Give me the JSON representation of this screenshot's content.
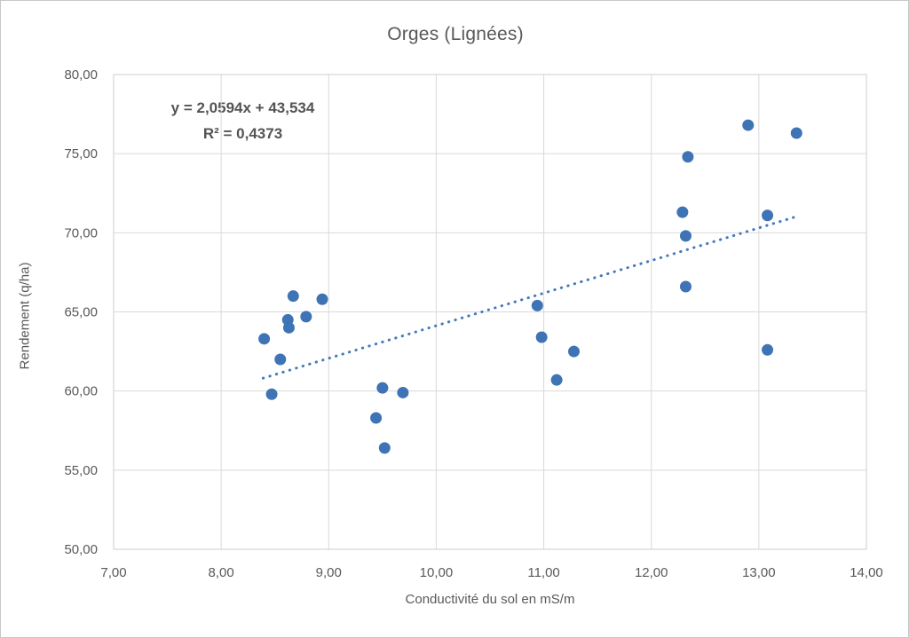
{
  "chart_data": {
    "type": "scatter",
    "title": "Orges (Lignées)",
    "xlabel": "Conductivité du sol en mS/m",
    "ylabel": "Rendement (q/ha)",
    "xlim": [
      7,
      14
    ],
    "ylim": [
      50,
      80
    ],
    "x_tick_labels": [
      "7,00",
      "8,00",
      "9,00",
      "10,00",
      "11,00",
      "12,00",
      "13,00",
      "14,00"
    ],
    "y_tick_labels": [
      "50,00",
      "55,00",
      "60,00",
      "65,00",
      "70,00",
      "75,00",
      "80,00"
    ],
    "grid": true,
    "legend": "none",
    "series": [
      {
        "name": "Orges (Lignées)",
        "marker_color": "#3E74B5",
        "points": [
          [
            8.4,
            63.3
          ],
          [
            8.47,
            59.8
          ],
          [
            8.55,
            62.0
          ],
          [
            8.62,
            64.5
          ],
          [
            8.63,
            64.0
          ],
          [
            8.67,
            66.0
          ],
          [
            8.79,
            64.7
          ],
          [
            8.94,
            65.8
          ],
          [
            9.44,
            58.3
          ],
          [
            9.5,
            60.2
          ],
          [
            9.52,
            56.4
          ],
          [
            9.69,
            59.9
          ],
          [
            10.94,
            65.4
          ],
          [
            10.98,
            63.4
          ],
          [
            11.12,
            60.7
          ],
          [
            11.28,
            62.5
          ],
          [
            12.29,
            71.3
          ],
          [
            12.32,
            69.8
          ],
          [
            12.32,
            66.6
          ],
          [
            12.34,
            74.8
          ],
          [
            12.9,
            76.8
          ],
          [
            13.08,
            71.1
          ],
          [
            13.08,
            62.6
          ],
          [
            13.35,
            76.3
          ]
        ]
      }
    ],
    "trendline": {
      "slope": 2.0594,
      "intercept": 43.534,
      "r_squared": 0.4373,
      "x_start": 8.39,
      "x_end": 13.37,
      "color": "#4479BC",
      "style": "dotted",
      "equation_label": "y = 2,0594x + 43,534",
      "r2_label": "R² = 0,4373"
    },
    "colors": {
      "text": "#595959",
      "gridline": "#D9D9D9",
      "plot_border": "#D6D6D6"
    }
  }
}
